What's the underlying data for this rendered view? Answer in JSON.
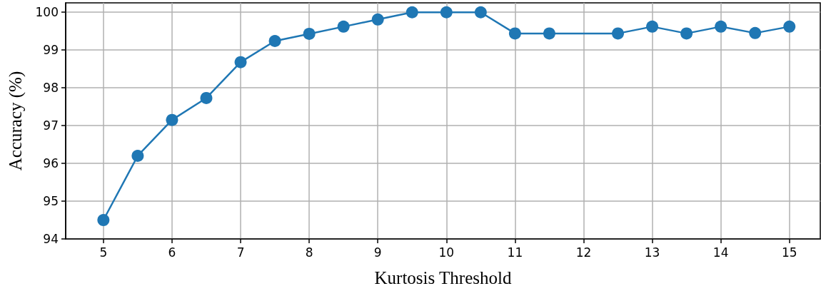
{
  "chart_data": {
    "type": "line",
    "xlabel": "Kurtosis Threshold",
    "ylabel": "Accuracy (%)",
    "x": [
      5,
      5.5,
      6,
      6.5,
      7,
      7.5,
      8,
      8.5,
      9,
      9.5,
      10,
      10.5,
      11,
      11.5,
      12.5,
      13,
      13.5,
      14,
      14.5,
      15
    ],
    "series": [
      {
        "color": "#1f77b4",
        "values": [
          94.5,
          96.2,
          97.15,
          97.73,
          98.68,
          99.24,
          99.43,
          99.62,
          99.81,
          100,
          100,
          100,
          99.44,
          99.44,
          99.44,
          99.62,
          99.44,
          99.62,
          99.45,
          99.62
        ]
      }
    ],
    "xlim": [
      4.45,
      15.45
    ],
    "xticks": [
      5,
      6,
      7,
      8,
      9,
      10,
      11,
      12,
      13,
      14,
      15
    ],
    "ylim": [
      94,
      100.25
    ],
    "yticks": [
      94,
      95,
      96,
      97,
      98,
      99,
      100
    ],
    "grid": true,
    "marker": "circle",
    "line_style": "solid"
  }
}
